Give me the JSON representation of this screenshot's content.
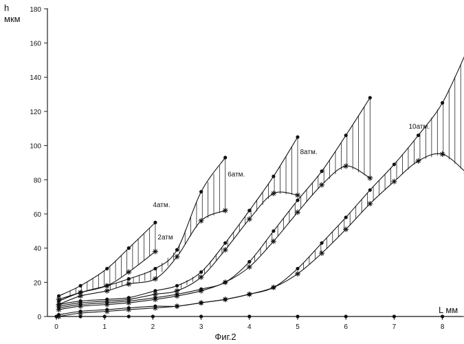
{
  "chart_data": {
    "type": "line",
    "ylabel_top": "h",
    "ylabel_bottom": "мкм",
    "xlabel": "L  мм",
    "caption": "Фиг.2",
    "xlim": [
      0,
      8.7
    ],
    "ylim": [
      0,
      180
    ],
    "x_ticks": [
      0,
      1,
      2,
      3,
      4,
      5,
      6,
      7,
      8
    ],
    "y_ticks": [
      0,
      20,
      40,
      60,
      80,
      100,
      120,
      140,
      160,
      180
    ],
    "grid": false,
    "series": [
      {
        "name": "2атм",
        "upper": {
          "x": [
            0.05,
            0.5,
            1.05,
            1.5,
            2.05
          ],
          "y": [
            12,
            18,
            28,
            40,
            55
          ]
        },
        "lower": {
          "x": [
            0.05,
            0.5,
            1.05,
            1.5,
            2.05
          ],
          "y": [
            10,
            14,
            18,
            26,
            38
          ]
        }
      },
      {
        "name": "4атм.",
        "upper": {
          "x": [
            0.05,
            0.5,
            1.05,
            1.5,
            2.05,
            2.5,
            3.0,
            3.5
          ],
          "y": [
            9,
            14,
            18,
            22,
            28,
            39,
            73,
            93
          ]
        },
        "lower": {
          "x": [
            0.05,
            0.5,
            1.05,
            1.5,
            2.05,
            2.5,
            3.0,
            3.5
          ],
          "y": [
            7,
            12,
            15,
            19,
            22,
            35,
            56,
            62
          ]
        }
      },
      {
        "name": "6атм.",
        "upper": {
          "x": [
            0.05,
            0.5,
            1.05,
            1.5,
            2.05,
            2.5,
            3.0,
            3.5,
            4.0,
            4.5,
            5.0
          ],
          "y": [
            7,
            9,
            10,
            11,
            15,
            18,
            26,
            43,
            62,
            82,
            105
          ]
        },
        "lower": {
          "x": [
            0.05,
            0.5,
            1.05,
            1.5,
            2.05,
            2.5,
            3.0,
            3.5,
            4.0,
            4.5,
            5.0
          ],
          "y": [
            6,
            8,
            9,
            10,
            13,
            15,
            23,
            39,
            57,
            72,
            71
          ]
        }
      },
      {
        "name": "8атм.",
        "upper": {
          "x": [
            0.05,
            0.5,
            1.05,
            1.5,
            2.05,
            2.5,
            3.0,
            3.5,
            4.0,
            4.5,
            5.0,
            5.5,
            6.0,
            6.5
          ],
          "y": [
            5,
            7,
            8,
            9,
            11,
            13,
            16,
            20,
            32,
            50,
            68,
            85,
            106,
            128
          ]
        },
        "lower": {
          "x": [
            0.05,
            0.5,
            1.05,
            1.5,
            2.05,
            2.5,
            3.0,
            3.5,
            4.0,
            4.5,
            5.0,
            5.5,
            6.0,
            6.5
          ],
          "y": [
            4,
            6,
            7,
            8,
            10,
            12,
            15,
            20,
            29,
            44,
            61,
            77,
            88,
            81
          ]
        }
      },
      {
        "name": "10атм.",
        "upper": {
          "x": [
            0.05,
            0.5,
            1.05,
            1.5,
            2.05,
            2.5,
            3.0,
            3.5,
            4.0,
            4.5,
            5.0,
            5.5,
            6.0,
            6.5,
            7.0,
            7.5,
            8.0,
            8.5
          ],
          "y": [
            1,
            3,
            4,
            5,
            6,
            6,
            8,
            10,
            13,
            17,
            28,
            43,
            58,
            74,
            89,
            106,
            125,
            155
          ]
        },
        "lower": {
          "x": [
            0.05,
            0.5,
            1.05,
            1.5,
            2.05,
            2.5,
            3.0,
            3.5,
            4.0,
            4.5,
            5.0,
            5.5,
            6.0,
            6.5,
            7.0,
            7.5,
            8.0,
            8.5
          ],
          "y": [
            0,
            2,
            3,
            4,
            5,
            6,
            8,
            10,
            13,
            17,
            25,
            37,
            51,
            66,
            79,
            91,
            95,
            84
          ]
        }
      },
      {
        "name": "",
        "upper": {
          "x": [
            0,
            0.5,
            1.0,
            1.5,
            2.0,
            3.0,
            4.0,
            5.0,
            6.0,
            7.0,
            8.0,
            8.5
          ],
          "y": [
            0,
            0,
            0,
            0,
            0,
            0,
            0,
            0,
            0,
            0,
            0,
            0
          ]
        },
        "lower": {
          "x": [],
          "y": []
        }
      }
    ]
  }
}
